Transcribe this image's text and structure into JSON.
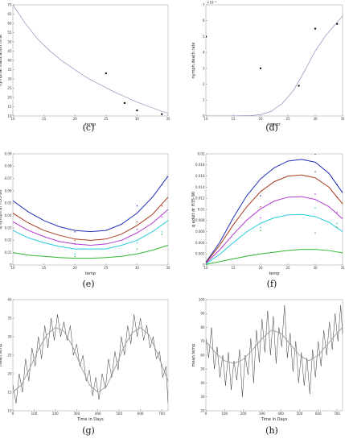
{
  "chart_data": [
    {
      "type": "scatter",
      "panel": "(c)",
      "xlabel": "temp",
      "ylabel": "nymphal maturation time",
      "xlim": [
        10,
        35
      ],
      "ylim": [
        10,
        70
      ],
      "xticks": [
        10,
        15,
        20,
        25,
        30,
        35
      ],
      "yticks": [
        10,
        15,
        20,
        25,
        30,
        35,
        40,
        45,
        50,
        55,
        60,
        65,
        70
      ],
      "xtick_labels": [
        "10",
        "15",
        "20",
        "25",
        "30",
        "35"
      ],
      "ytick_labels": [
        "10",
        "15",
        "20",
        "25",
        "30",
        "35",
        "40",
        "45",
        "50",
        "55",
        "60",
        "65",
        "70"
      ],
      "points": [
        [
          25,
          33
        ],
        [
          28,
          17
        ],
        [
          30,
          13
        ],
        [
          34,
          11
        ]
      ],
      "curve": {
        "x": [
          10,
          12,
          14,
          16,
          18,
          20,
          22,
          24,
          26,
          28,
          30,
          32,
          34,
          35
        ],
        "y": [
          70,
          60,
          51.5,
          45,
          39.5,
          35,
          30.5,
          27,
          23.5,
          20.5,
          17.5,
          15,
          12.5,
          11.5
        ]
      },
      "series": [
        {
          "color": "#7a7fb0"
        }
      ]
    },
    {
      "type": "scatter",
      "panel": "(d)",
      "xlabel": "tempr",
      "ylabel": "nymph death rate",
      "exponent_label": "×10⁻³",
      "xlim": [
        10,
        35
      ],
      "ylim": [
        0,
        7
      ],
      "xticks": [
        10,
        15,
        20,
        25,
        30,
        35
      ],
      "yticks": [
        0,
        1,
        2,
        3,
        4,
        5,
        6,
        7
      ],
      "xtick_labels": [
        "10",
        "15",
        "20",
        "25",
        "30",
        "35"
      ],
      "ytick_labels": [
        "0",
        "1",
        "2",
        "3",
        "4",
        "5",
        "6",
        "7"
      ],
      "points": [
        [
          10,
          5
        ],
        [
          20,
          3
        ],
        [
          27,
          1.9
        ],
        [
          30,
          5.5
        ],
        [
          34,
          5.8
        ]
      ],
      "curve": {
        "x": [
          10,
          14,
          18,
          20,
          22,
          24,
          26,
          28,
          30,
          32,
          34,
          35
        ],
        "y": [
          0,
          0,
          0.02,
          0.08,
          0.3,
          0.8,
          1.6,
          2.8,
          4.1,
          5.1,
          5.9,
          6.3
        ]
      },
      "series": [
        {
          "color": "#7a7fb0"
        }
      ]
    },
    {
      "type": "line",
      "panel": "(e)",
      "xlabel": "temp",
      "ylabel": "q nymph dr H35-90",
      "xlim": [
        10,
        35
      ],
      "ylim": [
        0,
        0.09
      ],
      "xticks": [
        10,
        15,
        20,
        25,
        30,
        35
      ],
      "yticks": [
        0,
        0.01,
        0.02,
        0.03,
        0.04,
        0.05,
        0.06,
        0.07,
        0.08,
        0.09
      ],
      "xtick_labels": [
        "10",
        "15",
        "20",
        "25",
        "30",
        "35"
      ],
      "ytick_labels": [
        "0",
        "0.01",
        "0.02",
        "0.03",
        "0.04",
        "0.05",
        "0.06",
        "0.07",
        "0.08",
        "0.09"
      ],
      "x": [
        10,
        12.5,
        15,
        17.5,
        20,
        22.5,
        25,
        27.5,
        30,
        32.5,
        35
      ],
      "series": [
        {
          "color": "#1f2fb5",
          "values": [
            0.052,
            0.043,
            0.036,
            0.031,
            0.028,
            0.027,
            0.028,
            0.033,
            0.042,
            0.055,
            0.072
          ],
          "points": [
            [
              20,
              0.027
            ],
            [
              30,
              0.048
            ],
            [
              34,
              0.065
            ]
          ]
        },
        {
          "color": "#a83a1c",
          "values": [
            0.042,
            0.034,
            0.028,
            0.024,
            0.021,
            0.02,
            0.021,
            0.025,
            0.032,
            0.041,
            0.055
          ],
          "points": [
            [
              20,
              0.02
            ],
            [
              30,
              0.035
            ],
            [
              34,
              0.048
            ]
          ]
        },
        {
          "color": "#b13bd1",
          "values": [
            0.035,
            0.028,
            0.023,
            0.019,
            0.017,
            0.016,
            0.017,
            0.02,
            0.026,
            0.034,
            0.045
          ],
          "points": [
            [
              20,
              0.017
            ],
            [
              30,
              0.029
            ],
            [
              34,
              0.039
            ]
          ]
        },
        {
          "color": "#27c8e0",
          "values": [
            0.028,
            0.022,
            0.018,
            0.015,
            0.013,
            0.013,
            0.013,
            0.016,
            0.02,
            0.027,
            0.036
          ],
          "points": [
            [
              20,
              0.009
            ],
            [
              30,
              0.018
            ],
            [
              34,
              0.027
            ]
          ]
        },
        {
          "color": "#2fb82f",
          "values": [
            0.01,
            0.008,
            0.007,
            0.006,
            0.0055,
            0.0055,
            0.006,
            0.007,
            0.009,
            0.012,
            0.016
          ],
          "points": [
            [
              20,
              0.007
            ],
            [
              30,
              0.013
            ],
            [
              34,
              0.025
            ]
          ]
        }
      ]
    },
    {
      "type": "line",
      "panel": "(f)",
      "xlabel": "temp",
      "ylabel": "q adult dr H35-90",
      "xlim": [
        10,
        35
      ],
      "ylim": [
        0,
        0.02
      ],
      "xticks": [
        10,
        15,
        20,
        25,
        30,
        35
      ],
      "yticks": [
        0,
        0.002,
        0.004,
        0.006,
        0.008,
        0.01,
        0.012,
        0.014,
        0.016,
        0.018,
        0.02
      ],
      "xtick_labels": [
        "10",
        "15",
        "20",
        "25",
        "30",
        "35"
      ],
      "ytick_labels": [
        "0",
        "0.002",
        "0.004",
        "0.006",
        "0.008",
        "0.01",
        "0.012",
        "0.014",
        "0.016",
        "0.018",
        "0.02"
      ],
      "x": [
        10,
        12.5,
        15,
        17.5,
        20,
        22.5,
        25,
        27.5,
        30,
        32.5,
        35
      ],
      "series": [
        {
          "color": "#1f2fb5",
          "values": [
            0.0005,
            0.004,
            0.0085,
            0.0125,
            0.0155,
            0.0175,
            0.0187,
            0.019,
            0.0185,
            0.0165,
            0.013
          ],
          "points": [
            [
              20,
              0.0125
            ],
            [
              30,
              0.02
            ],
            [
              34,
              0.0145
            ]
          ]
        },
        {
          "color": "#a83a1c",
          "values": [
            0.0004,
            0.0035,
            0.0072,
            0.0105,
            0.0132,
            0.015,
            0.016,
            0.0162,
            0.0157,
            0.014,
            0.011
          ],
          "points": [
            [
              20,
              0.0105
            ],
            [
              30,
              0.0168
            ],
            [
              34,
              0.0122
            ]
          ]
        },
        {
          "color": "#b13bd1",
          "values": [
            0.0003,
            0.0027,
            0.0055,
            0.0081,
            0.0101,
            0.0115,
            0.0122,
            0.0123,
            0.0118,
            0.0105,
            0.0083
          ],
          "points": [
            [
              20,
              0.0085
            ],
            [
              30,
              0.0128
            ],
            [
              34,
              0.0095
            ]
          ]
        },
        {
          "color": "#27c8e0",
          "values": [
            0.0002,
            0.0019,
            0.004,
            0.006,
            0.0075,
            0.0085,
            0.009,
            0.0091,
            0.0087,
            0.0077,
            0.006
          ],
          "points": [
            [
              20,
              0.0068
            ],
            [
              30,
              0.0103
            ],
            [
              34,
              0.0075
            ]
          ]
        },
        {
          "color": "#2fb82f",
          "values": [
            0.0001,
            0.0006,
            0.0011,
            0.0016,
            0.002,
            0.0023,
            0.0026,
            0.0028,
            0.0028,
            0.0026,
            0.0022
          ],
          "points": [
            [
              20,
              0.0062
            ],
            [
              30,
              0.0058
            ],
            [
              34,
              0.0068
            ]
          ]
        }
      ]
    },
    {
      "type": "line",
      "panel": "(g)",
      "xlabel": "Time in Days",
      "ylabel": "mean temp",
      "xlim": [
        0,
        730
      ],
      "ylim": [
        10,
        40
      ],
      "xticks": [
        0,
        100,
        200,
        300,
        400,
        500,
        600,
        700
      ],
      "yticks": [
        10,
        15,
        20,
        25,
        30,
        35,
        40
      ],
      "xtick_labels": [
        "0",
        "100",
        "200",
        "300",
        "400",
        "500",
        "600",
        "700"
      ],
      "ytick_labels": [
        "10",
        "15",
        "20",
        "25",
        "30",
        "35",
        "40"
      ],
      "smooth_x": [
        0,
        40,
        80,
        120,
        160,
        200,
        240,
        280,
        320,
        360,
        400,
        440,
        480,
        520,
        560,
        600,
        640,
        680,
        730
      ],
      "smooth_y": [
        15,
        17,
        21.5,
        26.5,
        30.5,
        32.5,
        31.5,
        27.5,
        22,
        17,
        15,
        16.5,
        21.5,
        27,
        31,
        32.5,
        30.5,
        25.5,
        18
      ],
      "noisy_x": [
        0,
        15,
        30,
        45,
        60,
        75,
        90,
        105,
        120,
        135,
        150,
        165,
        180,
        195,
        210,
        225,
        240,
        255,
        270,
        285,
        300,
        315,
        330,
        345,
        360,
        375,
        390,
        405,
        420,
        435,
        450,
        465,
        480,
        495,
        510,
        525,
        540,
        555,
        570,
        585,
        600,
        615,
        630,
        645,
        660,
        675,
        690,
        705,
        720,
        730
      ],
      "noisy_y": [
        17,
        12,
        20,
        15,
        24,
        18,
        27,
        22,
        30,
        24,
        33,
        27,
        35,
        29,
        36,
        30,
        34,
        29,
        33,
        25,
        28,
        22,
        25,
        18,
        21,
        14,
        19,
        13,
        20,
        16,
        24,
        19,
        26,
        21,
        30,
        25,
        33,
        28,
        36,
        30,
        35,
        29,
        33,
        27,
        30,
        24,
        26,
        19,
        22,
        12
      ],
      "series": [
        {
          "color": "#222222"
        },
        {
          "color": "#9a9a9a"
        }
      ]
    },
    {
      "type": "line",
      "panel": "(h)",
      "xlabel": "Time in Days",
      "ylabel": "mean temp",
      "xlim": [
        0,
        730
      ],
      "ylim": [
        20,
        100
      ],
      "xticks": [
        0,
        100,
        200,
        300,
        400,
        500,
        600,
        700
      ],
      "yticks": [
        20,
        30,
        40,
        50,
        60,
        70,
        80,
        90,
        100
      ],
      "xtick_labels": [
        "0",
        "100",
        "200",
        "300",
        "400",
        "500",
        "600",
        "700"
      ],
      "ytick_labels": [
        "20",
        "30",
        "40",
        "50",
        "60",
        "70",
        "80",
        "90",
        "100"
      ],
      "smooth_x": [
        0,
        50,
        100,
        150,
        200,
        250,
        300,
        350,
        400,
        450,
        500,
        550,
        600,
        650,
        700,
        730
      ],
      "smooth_y": [
        70,
        62,
        56,
        54,
        57,
        64,
        72,
        78,
        76,
        68,
        60,
        56,
        60,
        68,
        76,
        80
      ],
      "noisy_x": [
        0,
        15,
        30,
        45,
        60,
        75,
        90,
        105,
        120,
        135,
        150,
        165,
        180,
        195,
        210,
        225,
        240,
        255,
        270,
        285,
        300,
        315,
        330,
        345,
        360,
        375,
        390,
        405,
        420,
        435,
        450,
        465,
        480,
        495,
        510,
        525,
        540,
        555,
        570,
        585,
        600,
        615,
        630,
        645,
        660,
        675,
        690,
        705,
        720,
        730
      ],
      "noisy_y": [
        72,
        58,
        80,
        50,
        66,
        44,
        60,
        38,
        62,
        35,
        56,
        42,
        64,
        30,
        60,
        46,
        72,
        40,
        78,
        55,
        86,
        62,
        92,
        60,
        88,
        54,
        80,
        66,
        96,
        58,
        76,
        48,
        70,
        40,
        62,
        38,
        58,
        32,
        64,
        44,
        70,
        52,
        78,
        60,
        84,
        64,
        90,
        70,
        96,
        75
      ],
      "series": [
        {
          "color": "#222222"
        },
        {
          "color": "#9a9a9a"
        }
      ]
    }
  ]
}
